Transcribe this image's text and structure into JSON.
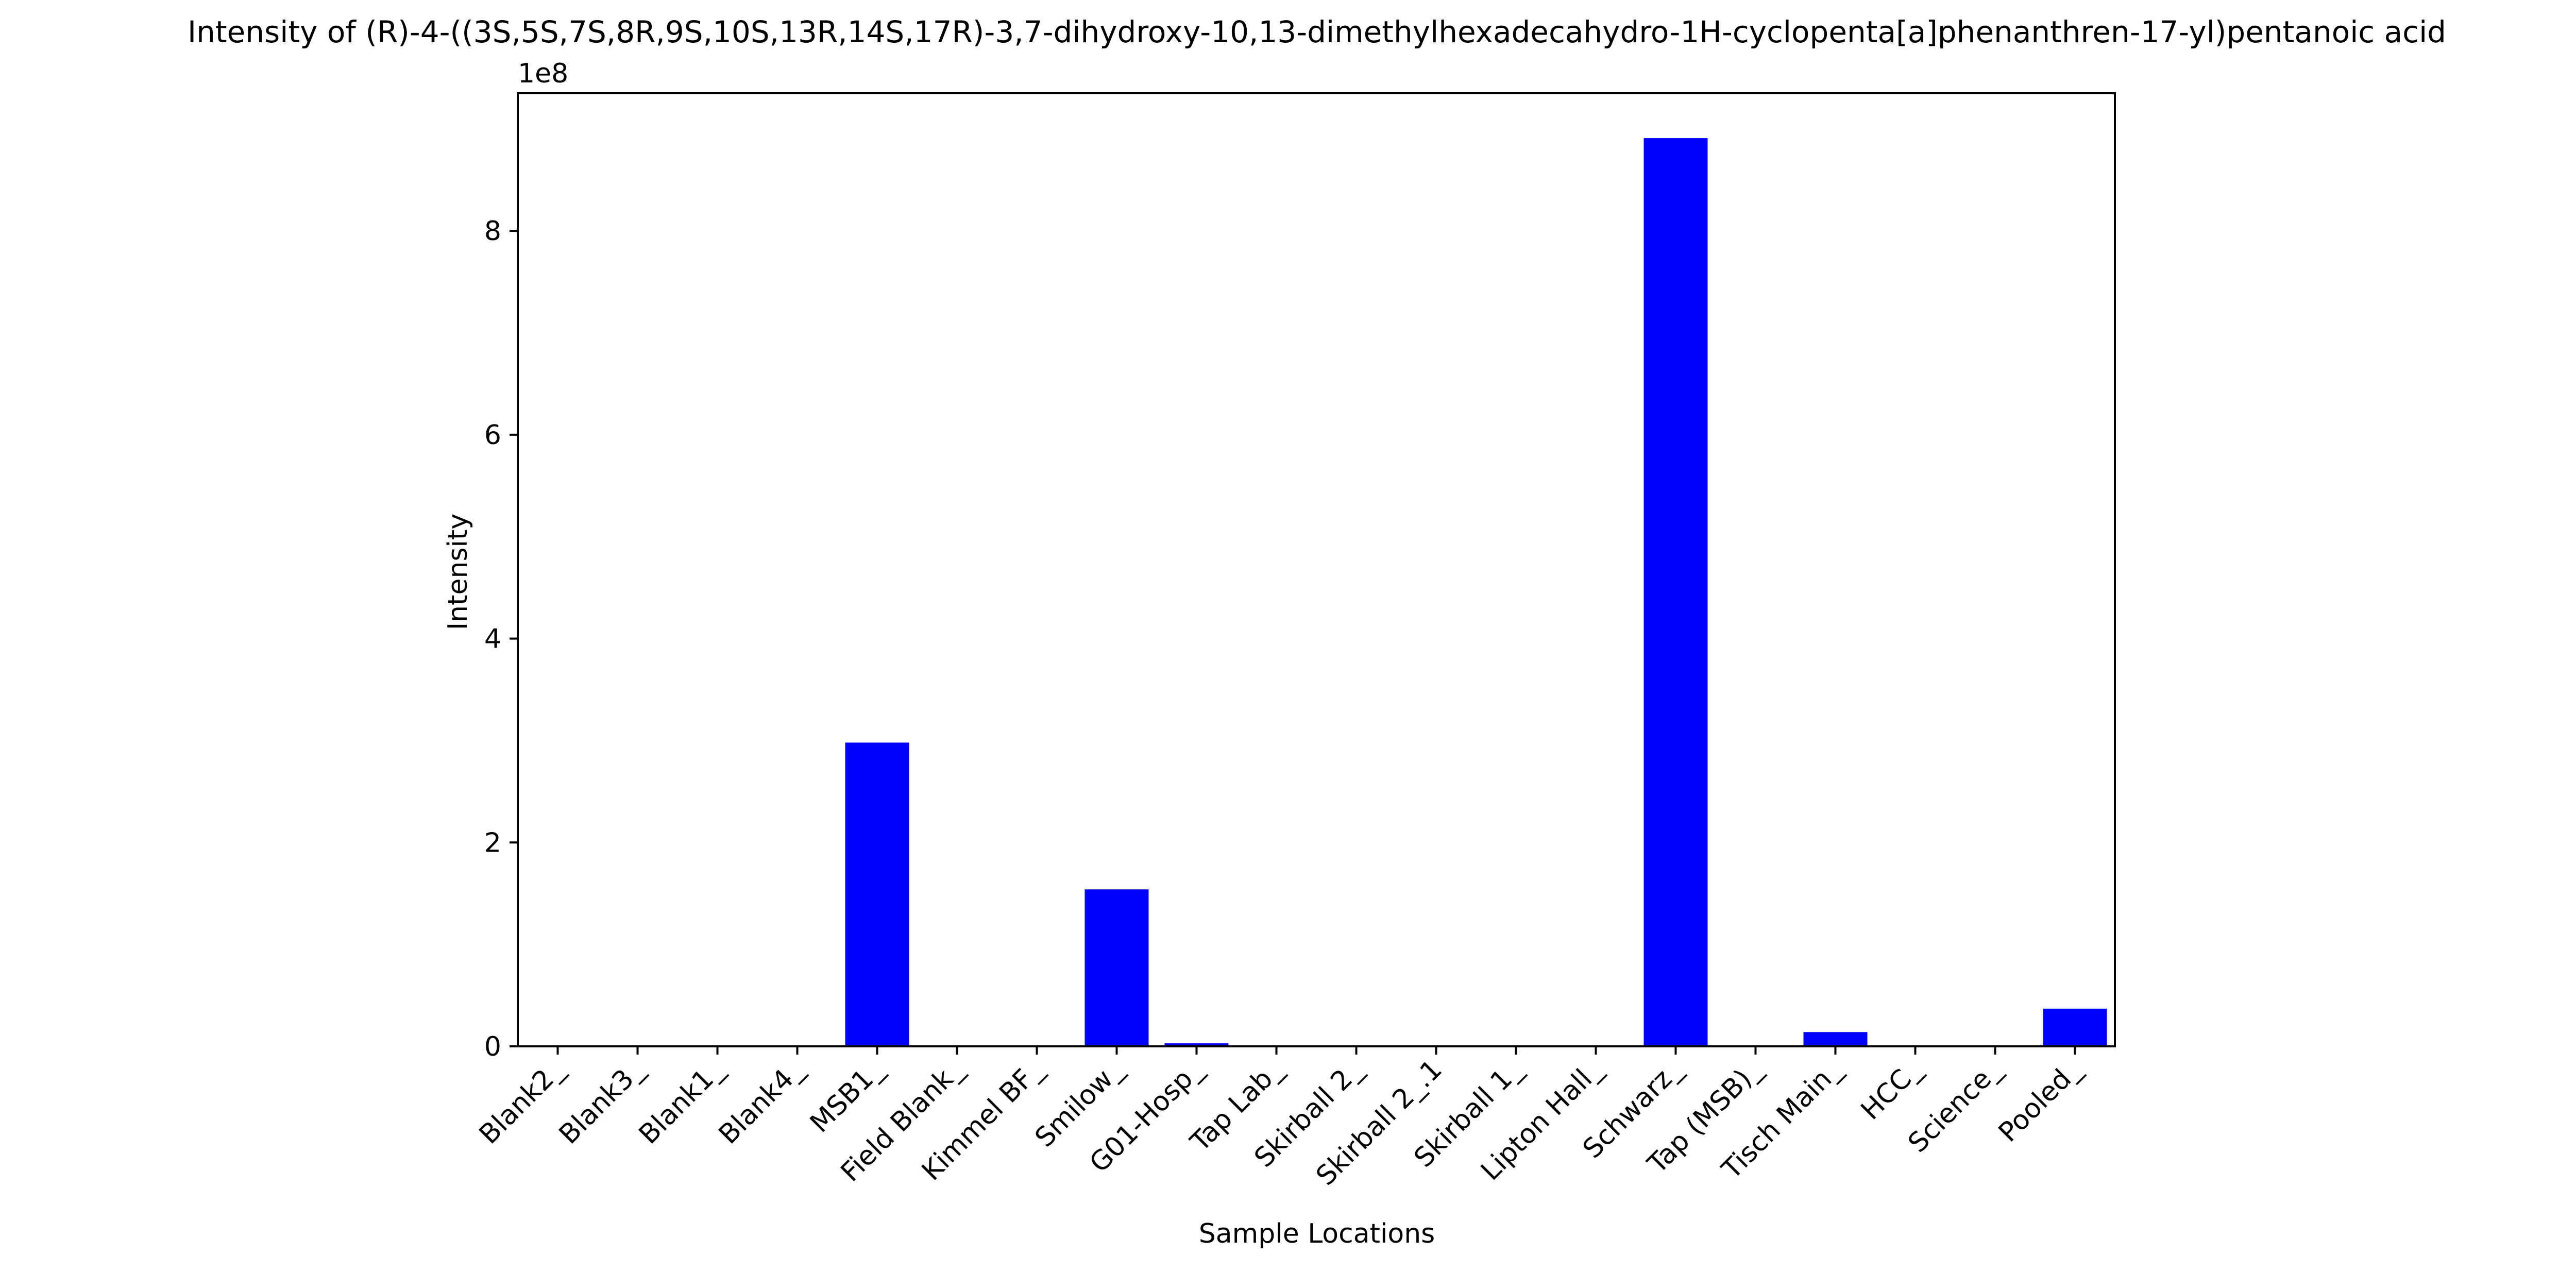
{
  "chart_data": {
    "type": "bar",
    "title": "Intensity of (R)-4-((3S,5S,7S,8R,9S,10S,13R,14S,17R)-3,7-dihydroxy-10,13-dimethylhexadecahydro-1H-cyclopenta[a]phenanthren-17-yl)pentanoic acid",
    "xlabel": "Sample Locations",
    "ylabel": "Intensity",
    "y_offset_text": "1e8",
    "y_scale": 100000000,
    "categories": [
      "Blank2_",
      "Blank3_",
      "Blank1_",
      "Blank4_",
      "MSB1_",
      "Field Blank_",
      "Kimmel BF_",
      "Smilow_",
      "G01-Hosp_",
      "Tap Lab_",
      "Skirball 2_",
      "Skirball 2_.1",
      "Skirball 1_",
      "Lipton Hall_",
      "Schwarz_",
      "Tap (MSB)_",
      "Tisch Main_",
      "HCC_",
      "Science_",
      "Pooled_"
    ],
    "values": [
      0,
      0,
      0,
      0,
      298000000,
      0,
      0,
      154000000,
      3000000,
      0,
      0,
      0,
      0,
      0,
      891000000,
      0,
      14000000,
      0,
      0,
      37000000
    ],
    "yticks": [
      0,
      200000000,
      400000000,
      600000000,
      800000000
    ],
    "ytick_labels": [
      "0",
      "2",
      "4",
      "6",
      "8"
    ],
    "ylim": [
      0,
      935000000
    ],
    "bar_color": "#0000ff",
    "grid": false,
    "legend": "none"
  }
}
